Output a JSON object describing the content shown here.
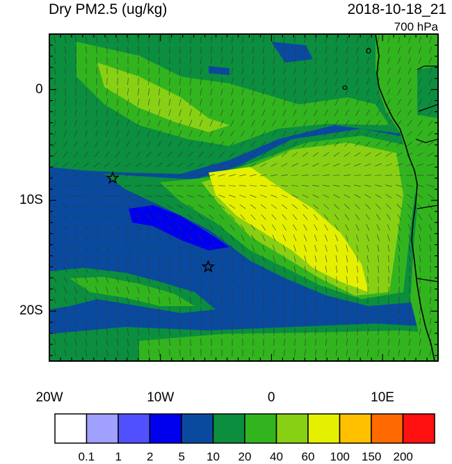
{
  "titles": {
    "left": "Dry PM2.5 (ug/kg)",
    "right": "2018-10-18_21",
    "level": "700 hPa"
  },
  "map": {
    "lon_range": [
      -20,
      15
    ],
    "lat_range": [
      -24.5,
      5
    ],
    "x_ticks": [
      {
        "value": -20,
        "label": "20W"
      },
      {
        "value": -10,
        "label": "10W"
      },
      {
        "value": 0,
        "label": "0"
      },
      {
        "value": 10,
        "label": "10E"
      }
    ],
    "y_ticks": [
      {
        "value": 0,
        "label": "0"
      },
      {
        "value": -10,
        "label": "10S"
      },
      {
        "value": -20,
        "label": "20S"
      }
    ],
    "stars": [
      {
        "lon": -14.3,
        "lat": -8.0,
        "icon": "star-icon"
      },
      {
        "lon": -5.7,
        "lat": -16.0,
        "icon": "star-icon"
      }
    ]
  },
  "colorbar": {
    "labels": [
      "0.1",
      "1",
      "2",
      "5",
      "10",
      "20",
      "40",
      "60",
      "100",
      "150",
      "200"
    ],
    "colors": [
      "#ffffff",
      "#a0a0ff",
      "#5050ff",
      "#0000ee",
      "#0a4a9e",
      "#0b8e3e",
      "#32b41e",
      "#88d014",
      "#e4f000",
      "#ffc000",
      "#ff6a00",
      "#ff1010"
    ]
  },
  "fill_colors": {
    "ocean": "#0a4a9e",
    "bright_blue": "#0000ee",
    "dark_green": "#0b8e3e",
    "green": "#32b41e",
    "lime": "#88d014",
    "yellow": "#e4f000"
  }
}
